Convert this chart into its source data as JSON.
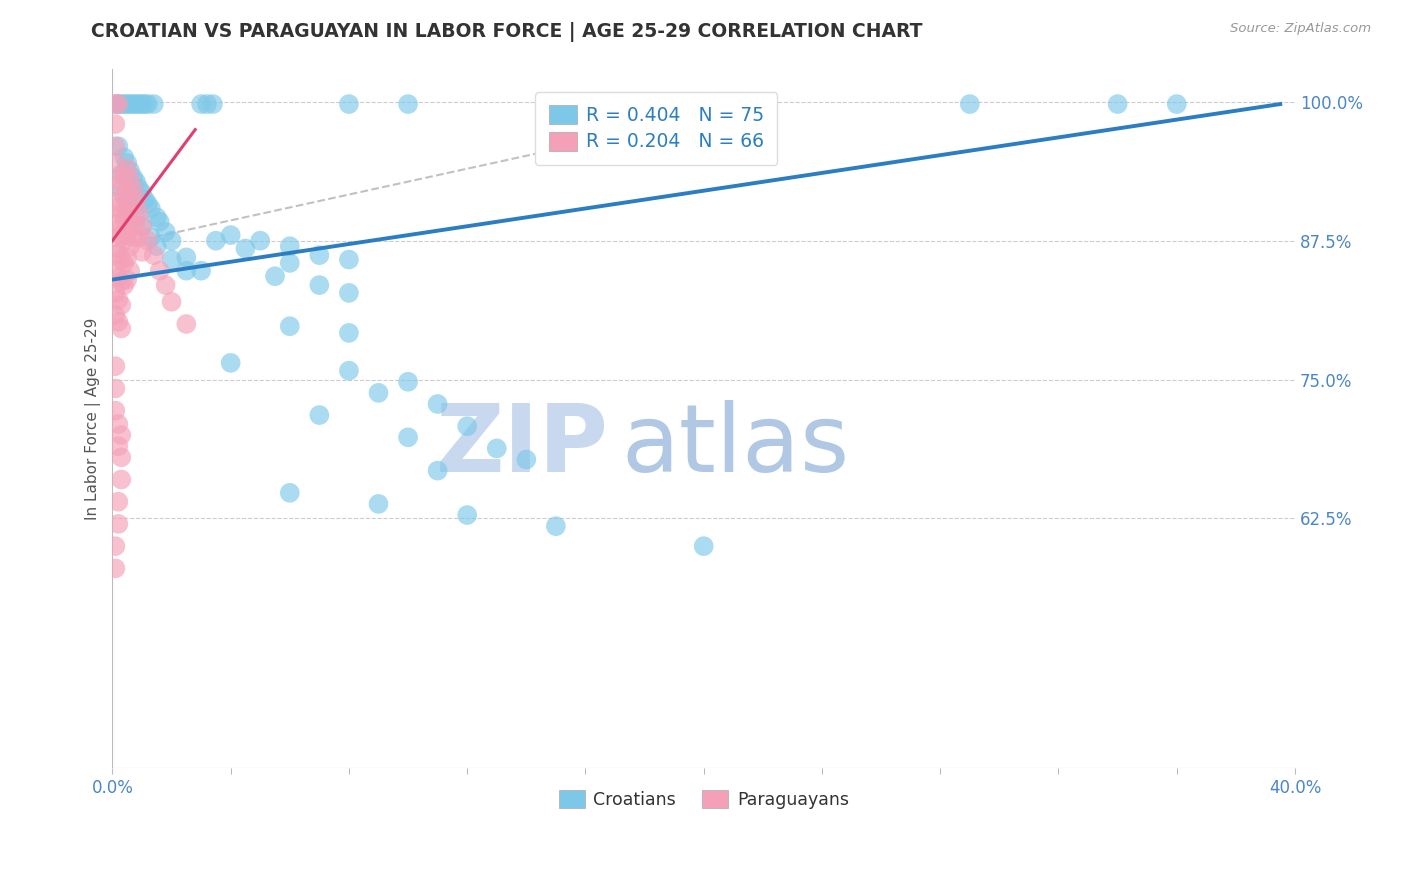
{
  "title": "CROATIAN VS PARAGUAYAN IN LABOR FORCE | AGE 25-29 CORRELATION CHART",
  "source_text": "Source: ZipAtlas.com",
  "ylabel": "In Labor Force | Age 25-29",
  "ytick_labels": [
    "100.0%",
    "87.5%",
    "75.0%",
    "62.5%"
  ],
  "ytick_values": [
    1.0,
    0.875,
    0.75,
    0.625
  ],
  "xmin": 0.0,
  "xmax": 0.4,
  "ymin": 0.4,
  "ymax": 1.03,
  "blue_color": "#7dc8e8",
  "pink_color": "#f4a0b8",
  "blue_line_color": "#2B7EC1",
  "pink_line_color": "#e04070",
  "croatians_label": "Croatians",
  "paraguayans_label": "Paraguayans",
  "watermark_zip": "ZIP",
  "watermark_atlas": "atlas",
  "background_color": "#ffffff",
  "grid_color": "#cccccc",
  "title_color": "#333333",
  "axis_label_color": "#4a86c8",
  "blue_scatter": [
    [
      0.001,
      0.998
    ],
    [
      0.002,
      0.998
    ],
    [
      0.003,
      0.998
    ],
    [
      0.004,
      0.998
    ],
    [
      0.005,
      0.998
    ],
    [
      0.006,
      0.998
    ],
    [
      0.007,
      0.998
    ],
    [
      0.008,
      0.998
    ],
    [
      0.009,
      0.998
    ],
    [
      0.01,
      0.998
    ],
    [
      0.011,
      0.998
    ],
    [
      0.012,
      0.998
    ],
    [
      0.014,
      0.998
    ],
    [
      0.03,
      0.998
    ],
    [
      0.032,
      0.998
    ],
    [
      0.034,
      0.998
    ],
    [
      0.08,
      0.998
    ],
    [
      0.1,
      0.998
    ],
    [
      0.17,
      0.998
    ],
    [
      0.19,
      0.998
    ],
    [
      0.29,
      0.998
    ],
    [
      0.34,
      0.998
    ],
    [
      0.36,
      0.998
    ],
    [
      0.002,
      0.96
    ],
    [
      0.004,
      0.95
    ],
    [
      0.005,
      0.945
    ],
    [
      0.006,
      0.938
    ],
    [
      0.007,
      0.932
    ],
    [
      0.008,
      0.928
    ],
    [
      0.009,
      0.922
    ],
    [
      0.01,
      0.918
    ],
    [
      0.011,
      0.912
    ],
    [
      0.012,
      0.908
    ],
    [
      0.013,
      0.904
    ],
    [
      0.015,
      0.896
    ],
    [
      0.016,
      0.892
    ],
    [
      0.018,
      0.883
    ],
    [
      0.02,
      0.875
    ],
    [
      0.025,
      0.86
    ],
    [
      0.03,
      0.848
    ],
    [
      0.04,
      0.88
    ],
    [
      0.05,
      0.875
    ],
    [
      0.06,
      0.87
    ],
    [
      0.07,
      0.862
    ],
    [
      0.08,
      0.858
    ],
    [
      0.003,
      0.935
    ],
    [
      0.003,
      0.92
    ],
    [
      0.005,
      0.91
    ],
    [
      0.006,
      0.905
    ],
    [
      0.008,
      0.895
    ],
    [
      0.01,
      0.888
    ],
    [
      0.013,
      0.878
    ],
    [
      0.015,
      0.87
    ],
    [
      0.02,
      0.858
    ],
    [
      0.025,
      0.848
    ],
    [
      0.035,
      0.875
    ],
    [
      0.045,
      0.868
    ],
    [
      0.06,
      0.855
    ],
    [
      0.055,
      0.843
    ],
    [
      0.07,
      0.835
    ],
    [
      0.08,
      0.828
    ],
    [
      0.06,
      0.798
    ],
    [
      0.08,
      0.792
    ],
    [
      0.04,
      0.765
    ],
    [
      0.08,
      0.758
    ],
    [
      0.1,
      0.748
    ],
    [
      0.09,
      0.738
    ],
    [
      0.11,
      0.728
    ],
    [
      0.07,
      0.718
    ],
    [
      0.12,
      0.708
    ],
    [
      0.1,
      0.698
    ],
    [
      0.13,
      0.688
    ],
    [
      0.14,
      0.678
    ],
    [
      0.11,
      0.668
    ],
    [
      0.06,
      0.648
    ],
    [
      0.09,
      0.638
    ],
    [
      0.12,
      0.628
    ],
    [
      0.15,
      0.618
    ],
    [
      0.2,
      0.6
    ]
  ],
  "pink_scatter": [
    [
      0.001,
      0.998
    ],
    [
      0.002,
      0.998
    ],
    [
      0.001,
      0.98
    ],
    [
      0.001,
      0.96
    ],
    [
      0.001,
      0.945
    ],
    [
      0.001,
      0.93
    ],
    [
      0.002,
      0.925
    ],
    [
      0.001,
      0.91
    ],
    [
      0.002,
      0.905
    ],
    [
      0.003,
      0.9
    ],
    [
      0.001,
      0.89
    ],
    [
      0.002,
      0.885
    ],
    [
      0.003,
      0.88
    ],
    [
      0.001,
      0.868
    ],
    [
      0.002,
      0.863
    ],
    [
      0.003,
      0.858
    ],
    [
      0.001,
      0.848
    ],
    [
      0.002,
      0.842
    ],
    [
      0.003,
      0.838
    ],
    [
      0.001,
      0.828
    ],
    [
      0.002,
      0.822
    ],
    [
      0.003,
      0.817
    ],
    [
      0.001,
      0.808
    ],
    [
      0.002,
      0.802
    ],
    [
      0.003,
      0.796
    ],
    [
      0.004,
      0.935
    ],
    [
      0.004,
      0.915
    ],
    [
      0.004,
      0.895
    ],
    [
      0.004,
      0.875
    ],
    [
      0.004,
      0.855
    ],
    [
      0.004,
      0.835
    ],
    [
      0.005,
      0.94
    ],
    [
      0.005,
      0.92
    ],
    [
      0.005,
      0.9
    ],
    [
      0.005,
      0.88
    ],
    [
      0.005,
      0.86
    ],
    [
      0.005,
      0.84
    ],
    [
      0.006,
      0.93
    ],
    [
      0.006,
      0.91
    ],
    [
      0.006,
      0.89
    ],
    [
      0.006,
      0.87
    ],
    [
      0.006,
      0.848
    ],
    [
      0.007,
      0.922
    ],
    [
      0.007,
      0.9
    ],
    [
      0.007,
      0.878
    ],
    [
      0.008,
      0.912
    ],
    [
      0.008,
      0.888
    ],
    [
      0.009,
      0.9
    ],
    [
      0.009,
      0.878
    ],
    [
      0.01,
      0.888
    ],
    [
      0.01,
      0.865
    ],
    [
      0.012,
      0.875
    ],
    [
      0.014,
      0.862
    ],
    [
      0.016,
      0.848
    ],
    [
      0.018,
      0.835
    ],
    [
      0.02,
      0.82
    ],
    [
      0.025,
      0.8
    ],
    [
      0.001,
      0.762
    ],
    [
      0.001,
      0.742
    ],
    [
      0.001,
      0.722
    ],
    [
      0.002,
      0.71
    ],
    [
      0.002,
      0.69
    ],
    [
      0.003,
      0.7
    ],
    [
      0.003,
      0.68
    ],
    [
      0.003,
      0.66
    ],
    [
      0.002,
      0.64
    ],
    [
      0.002,
      0.62
    ],
    [
      0.001,
      0.6
    ],
    [
      0.001,
      0.58
    ]
  ],
  "blue_trend_x": [
    0.0,
    0.395
  ],
  "blue_trend_y": [
    0.84,
    0.998
  ],
  "pink_trend_x": [
    0.0,
    0.028
  ],
  "pink_trend_y": [
    0.875,
    0.975
  ],
  "gray_trend_x": [
    0.0,
    0.22
  ],
  "gray_trend_y": [
    0.87,
    0.998
  ]
}
